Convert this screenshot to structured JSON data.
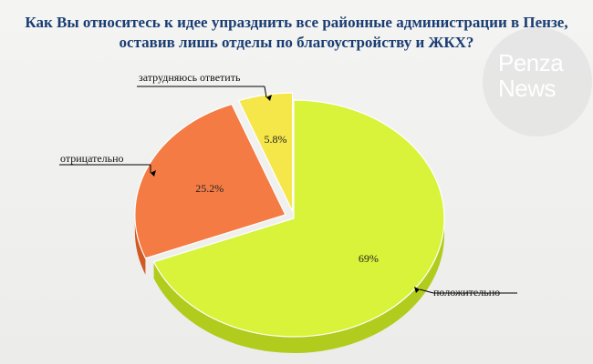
{
  "title": {
    "line1": "Как Вы относитесь к идее упразднить все районные администрации в Пензе,",
    "line2": "оставив лишь отделы по благоустройству и ЖКХ?"
  },
  "logo": {
    "line1": "Penza",
    "line2": "News"
  },
  "chart_data": {
    "type": "pie",
    "title": "Как Вы относитесь к идее упразднить все районные администрации в Пензе, оставив лишь отделы по благоустройству и ЖКХ?",
    "slices": [
      {
        "label": "положительно",
        "value": 69,
        "value_label": "69%",
        "color": "#d9f23a",
        "side_color": "#b2cc1e"
      },
      {
        "label": "отрицательно",
        "value": 25.2,
        "value_label": "25.2%",
        "color": "#f47b44",
        "side_color": "#d15a24"
      },
      {
        "label": "затрудняюсь ответить",
        "value": 5.8,
        "value_label": "5.8%",
        "color": "#f5e64a",
        "side_color": "#cfc023"
      }
    ]
  }
}
